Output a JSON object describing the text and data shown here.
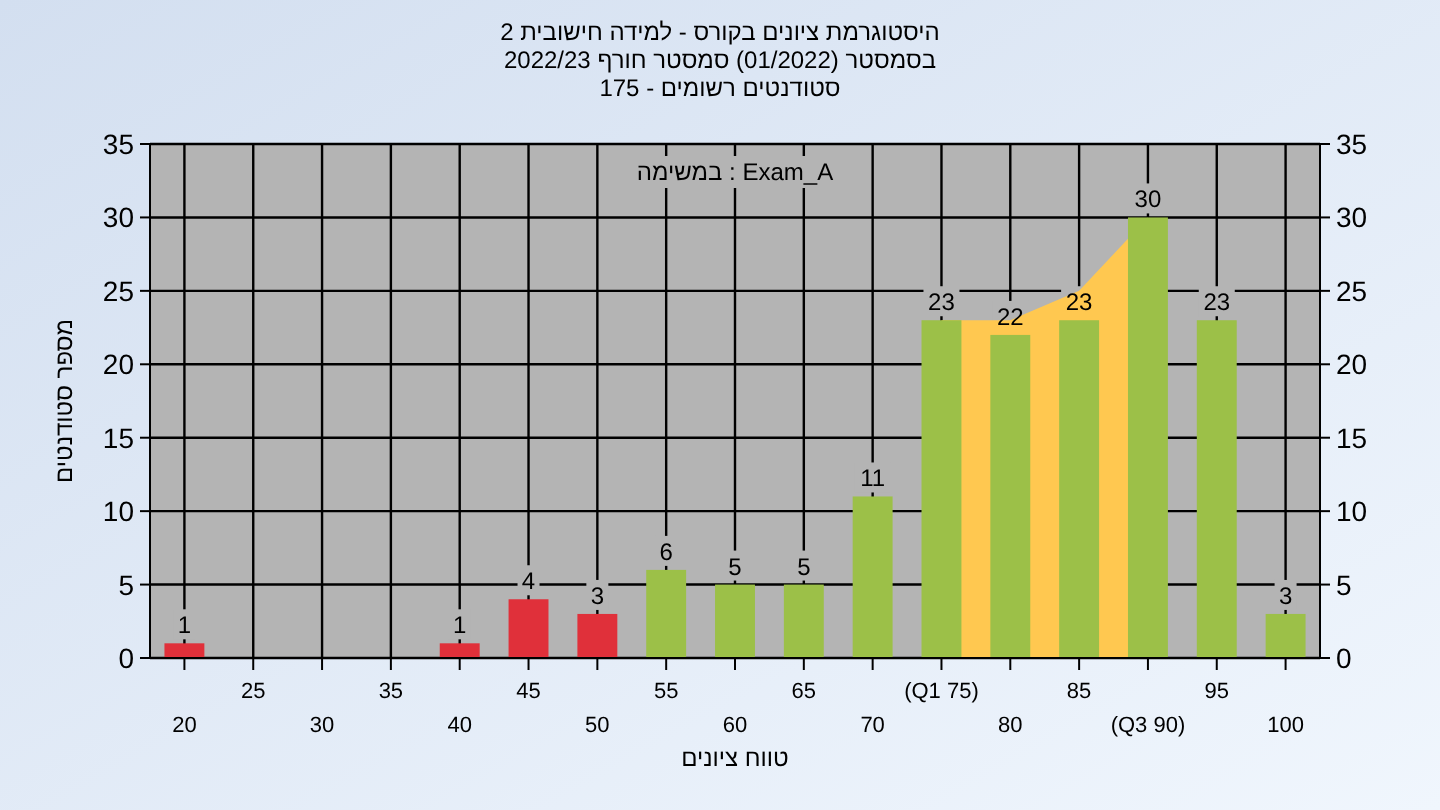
{
  "chart_data": {
    "type": "bar",
    "title": "היסטוגרמת ציונים בקורס - למידה חישובית 2",
    "subtitle": "בסמסטר  (01/2022)  סמסטר חורף 2022/23\nסטודנטים רשומים - 175",
    "xlabel": "טווח ציונים",
    "ylabel": "מספר סטודנטים",
    "annotations": [
      "במשימה : Exam_A"
    ],
    "categories": [
      "20",
      "25",
      "30",
      "35",
      "40",
      "45",
      "50",
      "55",
      "60",
      "65",
      "70",
      "(Q1 75)",
      "80",
      "85",
      "(Q3 90)",
      "95",
      "100"
    ],
    "series": [
      {
        "type": "area",
        "color": "#ffc850",
        "values": [
          null,
          null,
          null,
          null,
          null,
          null,
          null,
          null,
          null,
          null,
          null,
          23,
          23,
          25,
          30,
          null,
          null
        ]
      },
      {
        "colors": [
          "#e0303a",
          "#e0303a",
          "#e0303a",
          "#e0303a",
          "#e0303a",
          "#e0303a",
          "#e0303a",
          "#9cc048",
          "#9cc048",
          "#9cc048",
          "#9cc048",
          "#9cc048",
          "#9cc048",
          "#9cc048",
          "#9cc048",
          "#9cc048",
          "#9cc048"
        ],
        "values": [
          1,
          0,
          0,
          0,
          1,
          4,
          3,
          6,
          5,
          5,
          11,
          23,
          22,
          23,
          30,
          23,
          3
        ],
        "value_labels": [
          "1",
          null,
          null,
          null,
          "1",
          "4",
          "3",
          "6",
          "5",
          "5",
          "11",
          "23",
          "22",
          "23",
          "30",
          "23",
          "3"
        ]
      }
    ],
    "ylim": [
      0,
      35
    ],
    "yticks": [
      0,
      5,
      10,
      15,
      20,
      25,
      30,
      35
    ],
    "y2lim": [
      0,
      35
    ],
    "y2ticks": [
      0,
      5,
      10,
      15,
      20,
      25,
      30,
      35
    ],
    "grid": true
  }
}
